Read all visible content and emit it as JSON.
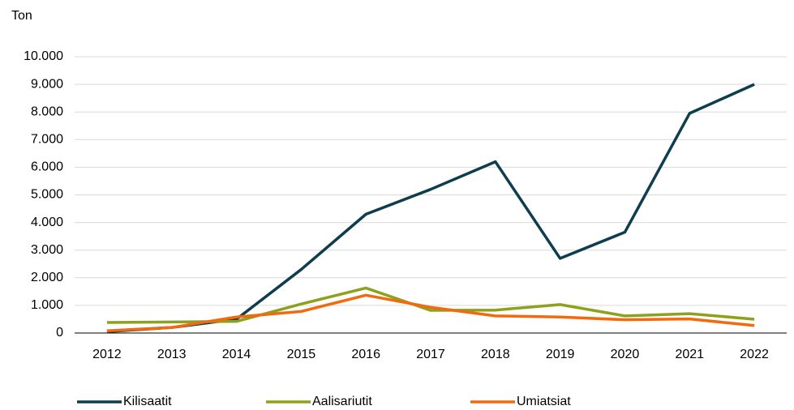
{
  "chart_data": {
    "type": "line",
    "y_label": "Ton",
    "categories": [
      "2012",
      "2013",
      "2014",
      "2015",
      "2016",
      "2017",
      "2018",
      "2019",
      "2020",
      "2021",
      "2022"
    ],
    "series": [
      {
        "name": "Kilisaatit",
        "color": "#0e3d4e",
        "values": [
          50,
          200,
          500,
          2300,
          4300,
          5200,
          6200,
          2700,
          3650,
          7950,
          9000
        ]
      },
      {
        "name": "Aalisariutit",
        "color": "#8ea11c",
        "values": [
          380,
          400,
          420,
          1050,
          1630,
          820,
          830,
          1030,
          620,
          700,
          500
        ]
      },
      {
        "name": "Umiatsiat",
        "color": "#f26a10",
        "values": [
          80,
          200,
          580,
          780,
          1370,
          930,
          620,
          580,
          480,
          510,
          270
        ]
      }
    ],
    "ylim": [
      0,
      10000
    ],
    "yticks": [
      0,
      {
        "value": 1000,
        "label": "1.000"
      },
      {
        "value": 2000,
        "label": "2.000"
      },
      {
        "value": 3000,
        "label": "3.000"
      },
      {
        "value": 4000,
        "label": "4.000"
      },
      {
        "value": 5000,
        "label": "5.000"
      },
      {
        "value": 6000,
        "label": "6.000"
      },
      {
        "value": 7000,
        "label": "7.000"
      },
      {
        "value": 8000,
        "label": "8.000"
      },
      {
        "value": 9000,
        "label": "9.000"
      },
      {
        "value": 10000,
        "label": "10.000"
      }
    ],
    "grid": true,
    "legend": "bottom"
  }
}
